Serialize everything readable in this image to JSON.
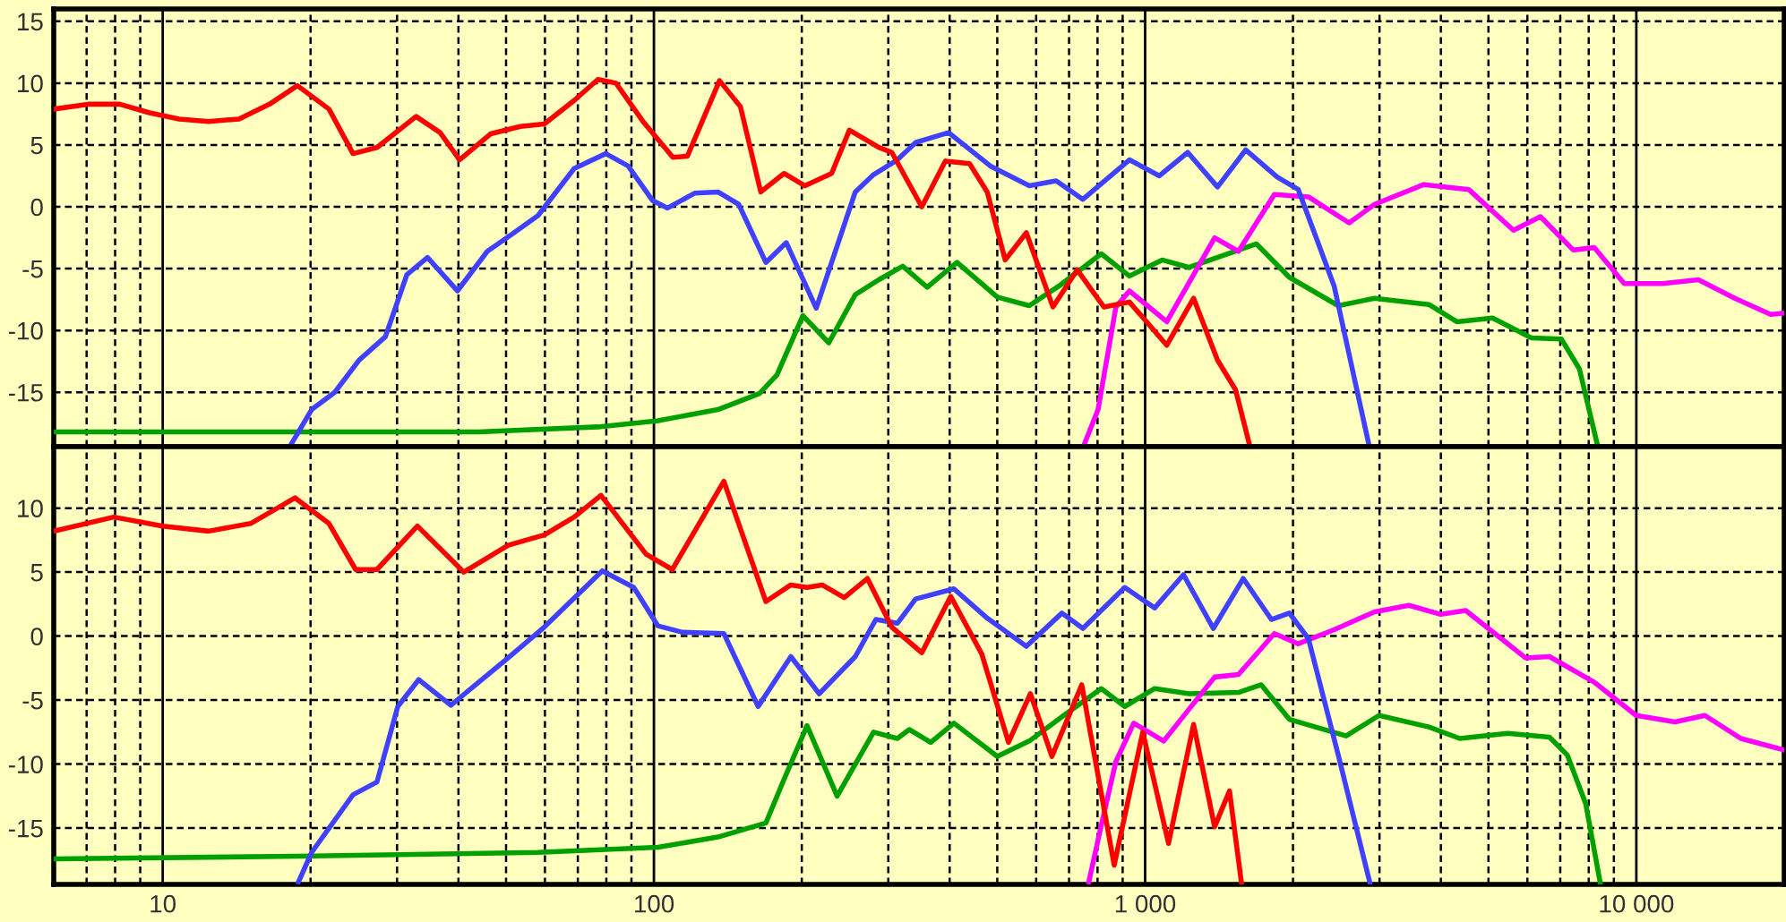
{
  "chart_data": [
    {
      "type": "line",
      "log": "x",
      "grid": true,
      "tick_labels": "y",
      "line_style": "solid",
      "xlim": [
        6,
        20000
      ],
      "ylim": [
        -19.4,
        16
      ],
      "xticks": [
        7,
        8,
        9,
        10,
        20,
        30,
        40,
        50,
        60,
        70,
        80,
        90,
        100,
        200,
        300,
        400,
        500,
        600,
        700,
        800,
        900,
        1000,
        2000,
        3000,
        4000,
        5000,
        6000,
        7000,
        8000,
        9000,
        10000
      ],
      "yticks": [
        -15,
        -10,
        -5,
        0,
        5,
        10,
        15
      ],
      "series": [
        {
          "color": "#00a000",
          "x": [
            6,
            18.9,
            43.9,
            76.9,
            101.9,
            135,
            164,
            178,
            201,
            227,
            257,
            287,
            321,
            360,
            414,
            500,
            581,
            668,
            814,
            929,
            1083,
            1229,
            1685,
            1966,
            2473,
            2932,
            3782,
            4310,
            5097,
            6116,
            7038,
            7655,
            8326
          ],
          "values": [
            -18.2,
            -18.2,
            -18.2,
            -17.8,
            -17.3,
            -16.4,
            -15.1,
            -13.6,
            -8.8,
            -11.0,
            -7.1,
            -5.9,
            -4.8,
            -6.5,
            -4.5,
            -7.3,
            -8.0,
            -6.4,
            -3.8,
            -5.6,
            -4.3,
            -4.9,
            -3.0,
            -5.7,
            -8.0,
            -7.4,
            -7.9,
            -9.3,
            -9.0,
            -10.6,
            -10.7,
            -13.1,
            -19.2
          ]
        },
        {
          "color": "#ff00ff",
          "x": [
            752,
            802,
            872,
            929,
            1107,
            1385,
            1549,
            1833,
            2150,
            2602,
            2932,
            3693,
            4557,
            5623,
            6379,
            7442,
            8210,
            9446,
            11330,
            13380,
            15870,
            18770,
            20000
          ],
          "values": [
            -19.2,
            -16.4,
            -8.1,
            -6.8,
            -9.3,
            -2.5,
            -3.6,
            1.0,
            0.8,
            -1.3,
            0.2,
            1.8,
            1.4,
            -1.9,
            -0.8,
            -3.5,
            -3.3,
            -6.2,
            -6.2,
            -5.9,
            -7.4,
            -8.7,
            -8.6
          ]
        },
        {
          "color": "#4040ff",
          "x": [
            18.2,
            20.1,
            22.4,
            25.1,
            28.4,
            31.4,
            34.6,
            39.8,
            45.8,
            51.9,
            58.1,
            68.8,
            79.8,
            88.6,
            99.4,
            106.6,
            121,
            135,
            148.8,
            169,
            186,
            214,
            257,
            280,
            313,
            341,
            398,
            484,
            581,
            659,
            747,
            929,
            1069,
            1221,
            1404,
            1602,
            1858,
            2050,
            2425,
            2853
          ],
          "values": [
            -19.3,
            -16.4,
            -15.0,
            -12.4,
            -10.5,
            -5.5,
            -4.1,
            -6.8,
            -3.6,
            -2.1,
            -0.7,
            3.1,
            4.3,
            3.3,
            0.5,
            -0.1,
            1.1,
            1.2,
            0.2,
            -4.5,
            -2.9,
            -8.2,
            1.2,
            2.6,
            3.8,
            5.2,
            6.0,
            3.3,
            1.7,
            2.1,
            0.6,
            3.8,
            2.5,
            4.4,
            1.6,
            4.6,
            2.4,
            1.4,
            -6.4,
            -19.2
          ]
        },
        {
          "color": "#ff0000",
          "x": [
            6,
            7.1,
            8.17,
            9.4,
            10.8,
            12.4,
            14.3,
            16.5,
            18.8,
            21.8,
            24.4,
            27.3,
            32.8,
            36.7,
            40.2,
            46.5,
            53.5,
            59.8,
            68.8,
            76.9,
            83.7,
            95,
            109.3,
            117,
            136,
            150,
            165,
            184,
            203,
            230,
            250,
            287,
            305,
            351,
            392,
            439,
            477,
            519,
            573,
            649,
            727,
            824,
            929,
            1107,
            1255,
            1404,
            1528,
            1630
          ],
          "values": [
            7.9,
            8.3,
            8.3,
            7.6,
            7.1,
            6.9,
            7.1,
            8.3,
            9.8,
            7.9,
            4.3,
            4.8,
            7.3,
            6.0,
            3.8,
            5.9,
            6.5,
            6.7,
            8.6,
            10.3,
            10.0,
            6.9,
            4.0,
            4.1,
            10.2,
            8.1,
            1.2,
            2.7,
            1.7,
            2.7,
            6.2,
            4.8,
            4.4,
            0.0,
            3.7,
            3.5,
            1.2,
            -4.3,
            -2.1,
            -8.1,
            -5.1,
            -8.1,
            -7.7,
            -11.2,
            -7.4,
            -12.4,
            -14.8,
            -19.2
          ]
        }
      ]
    },
    {
      "type": "line",
      "log": "x",
      "grid": true,
      "line_style": "solid",
      "xlim": [
        6,
        20000
      ],
      "ylim": [
        -19.4,
        14.8
      ],
      "xticks": [
        {
          "value": 7,
          "label": null
        },
        {
          "value": 8,
          "label": null
        },
        {
          "value": 9,
          "label": null
        },
        {
          "value": 10,
          "label": "10"
        },
        {
          "value": 20,
          "label": null
        },
        {
          "value": 30,
          "label": null
        },
        {
          "value": 40,
          "label": null
        },
        {
          "value": 50,
          "label": null
        },
        {
          "value": 60,
          "label": null
        },
        {
          "value": 70,
          "label": null
        },
        {
          "value": 80,
          "label": null
        },
        {
          "value": 90,
          "label": null
        },
        {
          "value": 100,
          "label": "100"
        },
        {
          "value": 200,
          "label": null
        },
        {
          "value": 300,
          "label": null
        },
        {
          "value": 400,
          "label": null
        },
        {
          "value": 500,
          "label": null
        },
        {
          "value": 600,
          "label": null
        },
        {
          "value": 700,
          "label": null
        },
        {
          "value": 800,
          "label": null
        },
        {
          "value": 900,
          "label": null
        },
        {
          "value": 1000,
          "label": "1 000"
        },
        {
          "value": 2000,
          "label": null
        },
        {
          "value": 3000,
          "label": null
        },
        {
          "value": 4000,
          "label": null
        },
        {
          "value": 5000,
          "label": null
        },
        {
          "value": 6000,
          "label": null
        },
        {
          "value": 7000,
          "label": null
        },
        {
          "value": 8000,
          "label": null
        },
        {
          "value": 9000,
          "label": null
        },
        {
          "value": 10000,
          "label": "10 000"
        }
      ],
      "yticks": [
        -15,
        -10,
        -5,
        0,
        5,
        10
      ],
      "series": [
        {
          "color": "#00a000",
          "x": [
            6,
            18.9,
            58.1,
            101.9,
            135,
            169,
            184,
            205,
            236,
            280,
            313,
            331,
            366,
            408,
            500,
            581,
            677,
            814,
            909,
            1046,
            1229,
            1549,
            1723,
            1966,
            2565,
            2993,
            3782,
            4370,
            5469,
            6655,
            7237,
            7888,
            8446
          ],
          "values": [
            -17.4,
            -17.2,
            -16.9,
            -16.5,
            -15.7,
            -14.6,
            -11.2,
            -7.0,
            -12.5,
            -7.5,
            -8.0,
            -7.3,
            -8.3,
            -6.8,
            -9.4,
            -8.2,
            -6.3,
            -4.1,
            -5.5,
            -4.1,
            -4.5,
            -4.4,
            -3.8,
            -6.5,
            -7.8,
            -6.2,
            -7.1,
            -8.0,
            -7.6,
            -7.9,
            -9.3,
            -13.1,
            -19.3
          ]
        },
        {
          "color": "#ff00ff",
          "x": [
            768,
            814,
            872,
            948,
            1091,
            1229,
            1385,
            1549,
            1833,
            2050,
            2425,
            2932,
            3443,
            4000,
            4494,
            5948,
            6655,
            8210,
            9990,
            11990,
            13790,
            16320,
            20000
          ],
          "values": [
            -19.2,
            -14.8,
            -9.8,
            -6.8,
            -8.2,
            -5.7,
            -3.2,
            -3.0,
            0.2,
            -0.6,
            0.5,
            1.9,
            2.4,
            1.7,
            2.0,
            -1.7,
            -1.6,
            -3.6,
            -6.2,
            -6.7,
            -6.2,
            -8.0,
            -8.9
          ]
        },
        {
          "color": "#4040ff",
          "x": [
            18.9,
            20.1,
            24.4,
            27.3,
            30.1,
            33.2,
            38.6,
            50.5,
            59.8,
            78.5,
            91,
            101.9,
            114.3,
            138.8,
            163,
            190,
            217,
            257,
            283,
            313,
            341,
            408,
            477,
            573,
            677,
            747,
            909,
            1046,
            1197,
            1377,
            1584,
            1807,
            1966,
            2150,
            2473,
            2869
          ],
          "values": [
            -19.2,
            -16.9,
            -12.4,
            -11.4,
            -5.5,
            -3.4,
            -5.4,
            -1.7,
            0.7,
            5.1,
            3.8,
            0.8,
            0.3,
            0.2,
            -5.5,
            -1.6,
            -4.5,
            -1.6,
            1.3,
            1.0,
            2.9,
            3.7,
            1.4,
            -0.8,
            1.8,
            0.6,
            3.8,
            2.2,
            4.8,
            0.6,
            4.5,
            1.3,
            1.8,
            -0.2,
            -9.3,
            -19.3
          ]
        },
        {
          "color": "#ff0000",
          "x": [
            6,
            7.95,
            10,
            12.4,
            15.1,
            18.6,
            21.8,
            24.7,
            27.3,
            33,
            41,
            50.5,
            59.8,
            68.8,
            78,
            96.4,
            109,
            138.8,
            169,
            190,
            205,
            220,
            244,
            272,
            305,
            351,
            402,
            465,
            527,
            584,
            646,
            743,
            865,
            989,
            1116,
            1255,
            1385,
            1485,
            1571
          ],
          "values": [
            8.2,
            9.3,
            8.6,
            8.2,
            8.8,
            10.8,
            8.8,
            5.2,
            5.2,
            8.6,
            5.0,
            7.1,
            7.9,
            9.3,
            11.0,
            6.4,
            5.2,
            12.1,
            2.7,
            4.0,
            3.8,
            4.0,
            3.0,
            4.5,
            0.7,
            -1.3,
            3.1,
            -1.4,
            -8.3,
            -4.5,
            -9.4,
            -3.8,
            -17.9,
            -7.5,
            -16.2,
            -6.9,
            -14.9,
            -12.1,
            -19.3
          ]
        }
      ]
    }
  ]
}
